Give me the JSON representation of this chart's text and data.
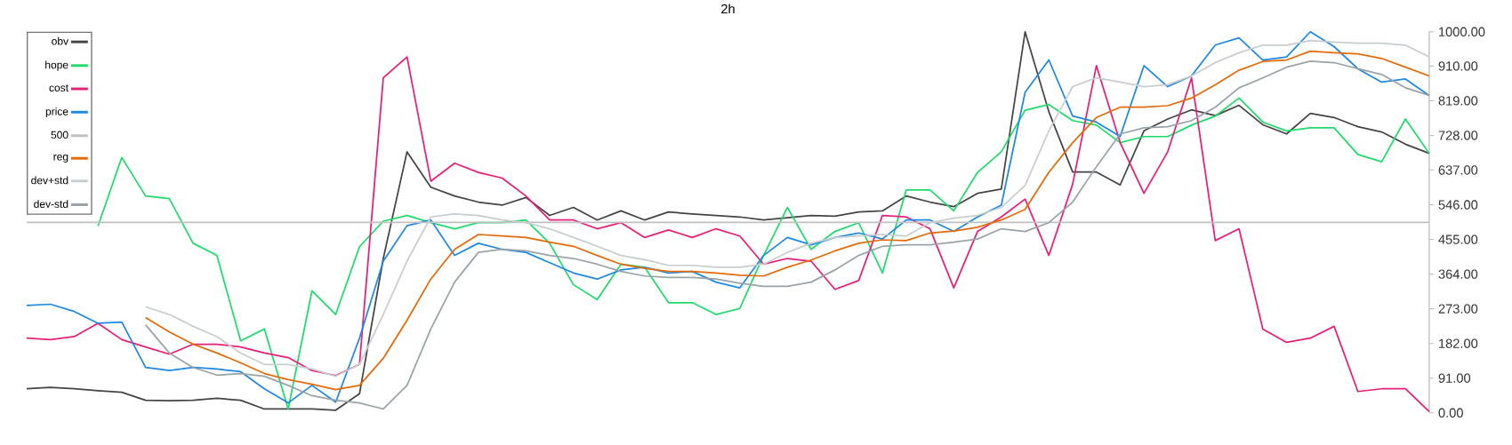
{
  "chart_data": {
    "type": "line",
    "title": "2h",
    "categories": [
      null,
      null,
      null,
      null,
      null,
      null,
      null,
      null,
      null,
      null,
      null,
      null,
      null,
      null,
      null,
      null,
      null,
      null,
      null,
      null,
      null,
      null,
      null,
      null,
      null,
      null,
      null,
      null,
      null,
      null,
      null,
      null,
      null,
      null,
      null,
      null,
      null,
      null,
      null,
      null,
      null,
      null,
      null,
      null,
      null,
      null,
      null,
      null,
      null,
      null,
      null,
      null,
      null,
      null,
      null,
      null,
      null,
      null,
      null,
      null
    ],
    "series": [
      {
        "name": "obv",
        "color": "#444444",
        "values": [
          63,
          67,
          63,
          58,
          54,
          33,
          32,
          33,
          38,
          33,
          10,
          10,
          10,
          7,
          50,
          405,
          685,
          592,
          569,
          553,
          545,
          565,
          518,
          539,
          506,
          530,
          506,
          527,
          522,
          518,
          514,
          506,
          512,
          518,
          516,
          527,
          530,
          569,
          553,
          541,
          576,
          587,
          1000,
          790,
          632,
          632,
          598,
          740,
          771,
          795,
          780,
          807,
          756,
          732,
          786,
          775,
          751,
          737,
          705,
          681
        ]
      },
      {
        "name": "hope",
        "color": "#1fdc6a",
        "values": [
          null,
          null,
          null,
          490,
          670,
          569,
          562,
          445,
          413,
          189,
          220,
          10,
          320,
          258,
          436,
          503,
          518,
          499,
          483,
          499,
          499,
          506,
          445,
          336,
          297,
          390,
          382,
          289,
          289,
          258,
          274,
          413,
          539,
          429,
          476,
          499,
          367,
          585,
          585,
          530,
          631,
          685,
          794,
          809,
          767,
          755,
          709,
          725,
          725,
          755,
          779,
          826,
          763,
          740,
          748,
          748,
          678,
          659,
          771,
          681
        ]
      },
      {
        "name": "cost",
        "color": "#e91e78",
        "values": [
          196,
          192,
          200,
          235,
          192,
          173,
          154,
          180,
          180,
          173,
          157,
          145,
          111,
          98,
          127,
          879,
          934,
          608,
          655,
          631,
          616,
          569,
          506,
          506,
          483,
          499,
          460,
          480,
          460,
          483,
          464,
          390,
          405,
          398,
          324,
          347,
          518,
          514,
          483,
          328,
          476,
          514,
          561,
          413,
          600,
          911,
          709,
          576,
          685,
          879,
          452,
          483,
          220,
          185,
          196,
          227,
          56,
          63,
          63,
          3
        ]
      },
      {
        "name": "price",
        "color": "#1e88e5",
        "values": [
          282,
          285,
          266,
          235,
          238,
          119,
          111,
          119,
          115,
          108,
          63,
          26,
          72,
          28,
          196,
          398,
          491,
          506,
          413,
          445,
          429,
          421,
          394,
          367,
          351,
          375,
          382,
          367,
          371,
          343,
          328,
          413,
          460,
          441,
          460,
          472,
          456,
          506,
          506,
          476,
          514,
          545,
          841,
          926,
          779,
          763,
          725,
          911,
          856,
          884,
          965,
          984,
          926,
          934,
          1000,
          961,
          903,
          868,
          876,
          833
        ]
      },
      {
        "name": "500",
        "color": "#c0c0c0",
        "values": [
          500,
          500,
          500,
          500,
          500,
          500,
          500,
          500,
          500,
          500,
          500,
          500,
          500,
          500,
          500,
          500,
          500,
          500,
          500,
          500,
          500,
          500,
          500,
          500,
          500,
          500,
          500,
          500,
          500,
          500,
          500,
          500,
          500,
          500,
          500,
          500,
          500,
          500,
          500,
          500,
          500,
          500,
          500,
          500,
          500,
          500,
          500,
          500,
          500,
          500,
          500,
          500,
          500,
          500,
          500,
          500,
          500,
          500,
          500,
          500
        ]
      },
      {
        "name": "reg",
        "color": "#e56b0a",
        "values": [
          null,
          null,
          null,
          null,
          null,
          250,
          212,
          180,
          157,
          131,
          103,
          87,
          75,
          61,
          72,
          143,
          243,
          351,
          429,
          468,
          464,
          460,
          448,
          437,
          413,
          390,
          379,
          371,
          371,
          367,
          361,
          359,
          382,
          401,
          425,
          445,
          454,
          452,
          472,
          477,
          487,
          506,
          534,
          631,
          709,
          775,
          802,
          802,
          806,
          826,
          861,
          899,
          922,
          926,
          949,
          945,
          942,
          930,
          907,
          884
        ]
      },
      {
        "name": "dev+std",
        "color": "#c8cdd0",
        "values": [
          null,
          null,
          null,
          null,
          null,
          278,
          258,
          227,
          200,
          157,
          127,
          127,
          115,
          96,
          127,
          258,
          398,
          514,
          522,
          518,
          506,
          499,
          483,
          460,
          437,
          413,
          402,
          387,
          387,
          382,
          382,
          390,
          421,
          445,
          460,
          464,
          468,
          464,
          499,
          511,
          518,
          539,
          597,
          740,
          856,
          879,
          868,
          856,
          861,
          884,
          919,
          945,
          965,
          965,
          977,
          973,
          970,
          970,
          965,
          934
        ]
      },
      {
        "name": "dev-std",
        "color": "#9aa3a8",
        "values": [
          null,
          null,
          null,
          null,
          null,
          231,
          157,
          119,
          99,
          103,
          96,
          72,
          45,
          33,
          26,
          10,
          72,
          220,
          343,
          421,
          429,
          425,
          413,
          405,
          390,
          371,
          359,
          355,
          355,
          351,
          340,
          332,
          332,
          343,
          375,
          413,
          437,
          441,
          441,
          448,
          456,
          483,
          476,
          499,
          553,
          646,
          732,
          748,
          751,
          767,
          802,
          853,
          879,
          907,
          923,
          919,
          903,
          888,
          853,
          833
        ]
      }
    ],
    "ylim": [
      0,
      1000
    ],
    "yticks": [
      {
        "value": 0,
        "label": "0.00"
      },
      {
        "value": 91,
        "label": "91.00"
      },
      {
        "value": 182,
        "label": "182.00"
      },
      {
        "value": 273,
        "label": "273.00"
      },
      {
        "value": 364,
        "label": "364.00"
      },
      {
        "value": 455,
        "label": "455.00"
      },
      {
        "value": 546,
        "label": "546.00"
      },
      {
        "value": 637,
        "label": "637.00"
      },
      {
        "value": 728,
        "label": "728.00"
      },
      {
        "value": 819,
        "label": "819.00"
      },
      {
        "value": 910,
        "label": "910.00"
      },
      {
        "value": 1000,
        "label": "1000.00"
      }
    ],
    "legend": "top left",
    "tick_labels": "y"
  }
}
